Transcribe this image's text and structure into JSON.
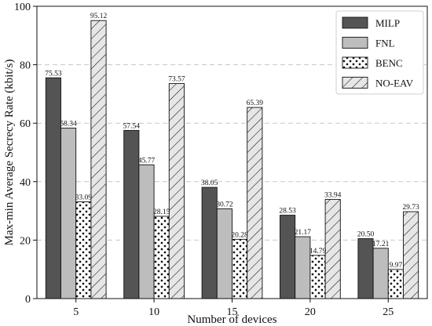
{
  "chart_data": {
    "type": "bar",
    "categories": [
      "5",
      "10",
      "15",
      "20",
      "25"
    ],
    "series": [
      {
        "name": "MILP",
        "values": [
          75.53,
          57.54,
          38.05,
          28.53,
          20.5
        ],
        "color": "#545454",
        "pattern": "solid"
      },
      {
        "name": "FNL",
        "values": [
          58.34,
          45.77,
          30.72,
          21.17,
          17.21
        ],
        "color": "#bdbdbd",
        "pattern": "solid"
      },
      {
        "name": "BENC",
        "values": [
          33.09,
          28.15,
          20.28,
          14.79,
          9.97
        ],
        "color": "#ffffff",
        "pattern": "dots"
      },
      {
        "name": "NO-EAV",
        "values": [
          95.12,
          73.57,
          65.39,
          33.94,
          29.73
        ],
        "color": "#e6e6e6",
        "pattern": "hatch"
      }
    ],
    "data_labels": [
      [
        "75.53",
        "57.54",
        "38.05",
        "28.53",
        "20.50"
      ],
      [
        "58.34",
        "45.77",
        "30.72",
        "21.17",
        "17.21"
      ],
      [
        "33.09",
        "28.15",
        "20.28",
        "14.79",
        "9.97"
      ],
      [
        "95.12",
        "73.57",
        "65.39",
        "33.94",
        "29.73"
      ]
    ],
    "title": "",
    "xlabel": "Number of devices",
    "ylabel": "Max-min Average Secrecy Rate (kbit/s)",
    "ylim": [
      0,
      100
    ],
    "yticks": [
      0,
      20,
      40,
      60,
      80,
      100
    ],
    "grid": "horizontal dashed",
    "legend_position": "top-right"
  }
}
